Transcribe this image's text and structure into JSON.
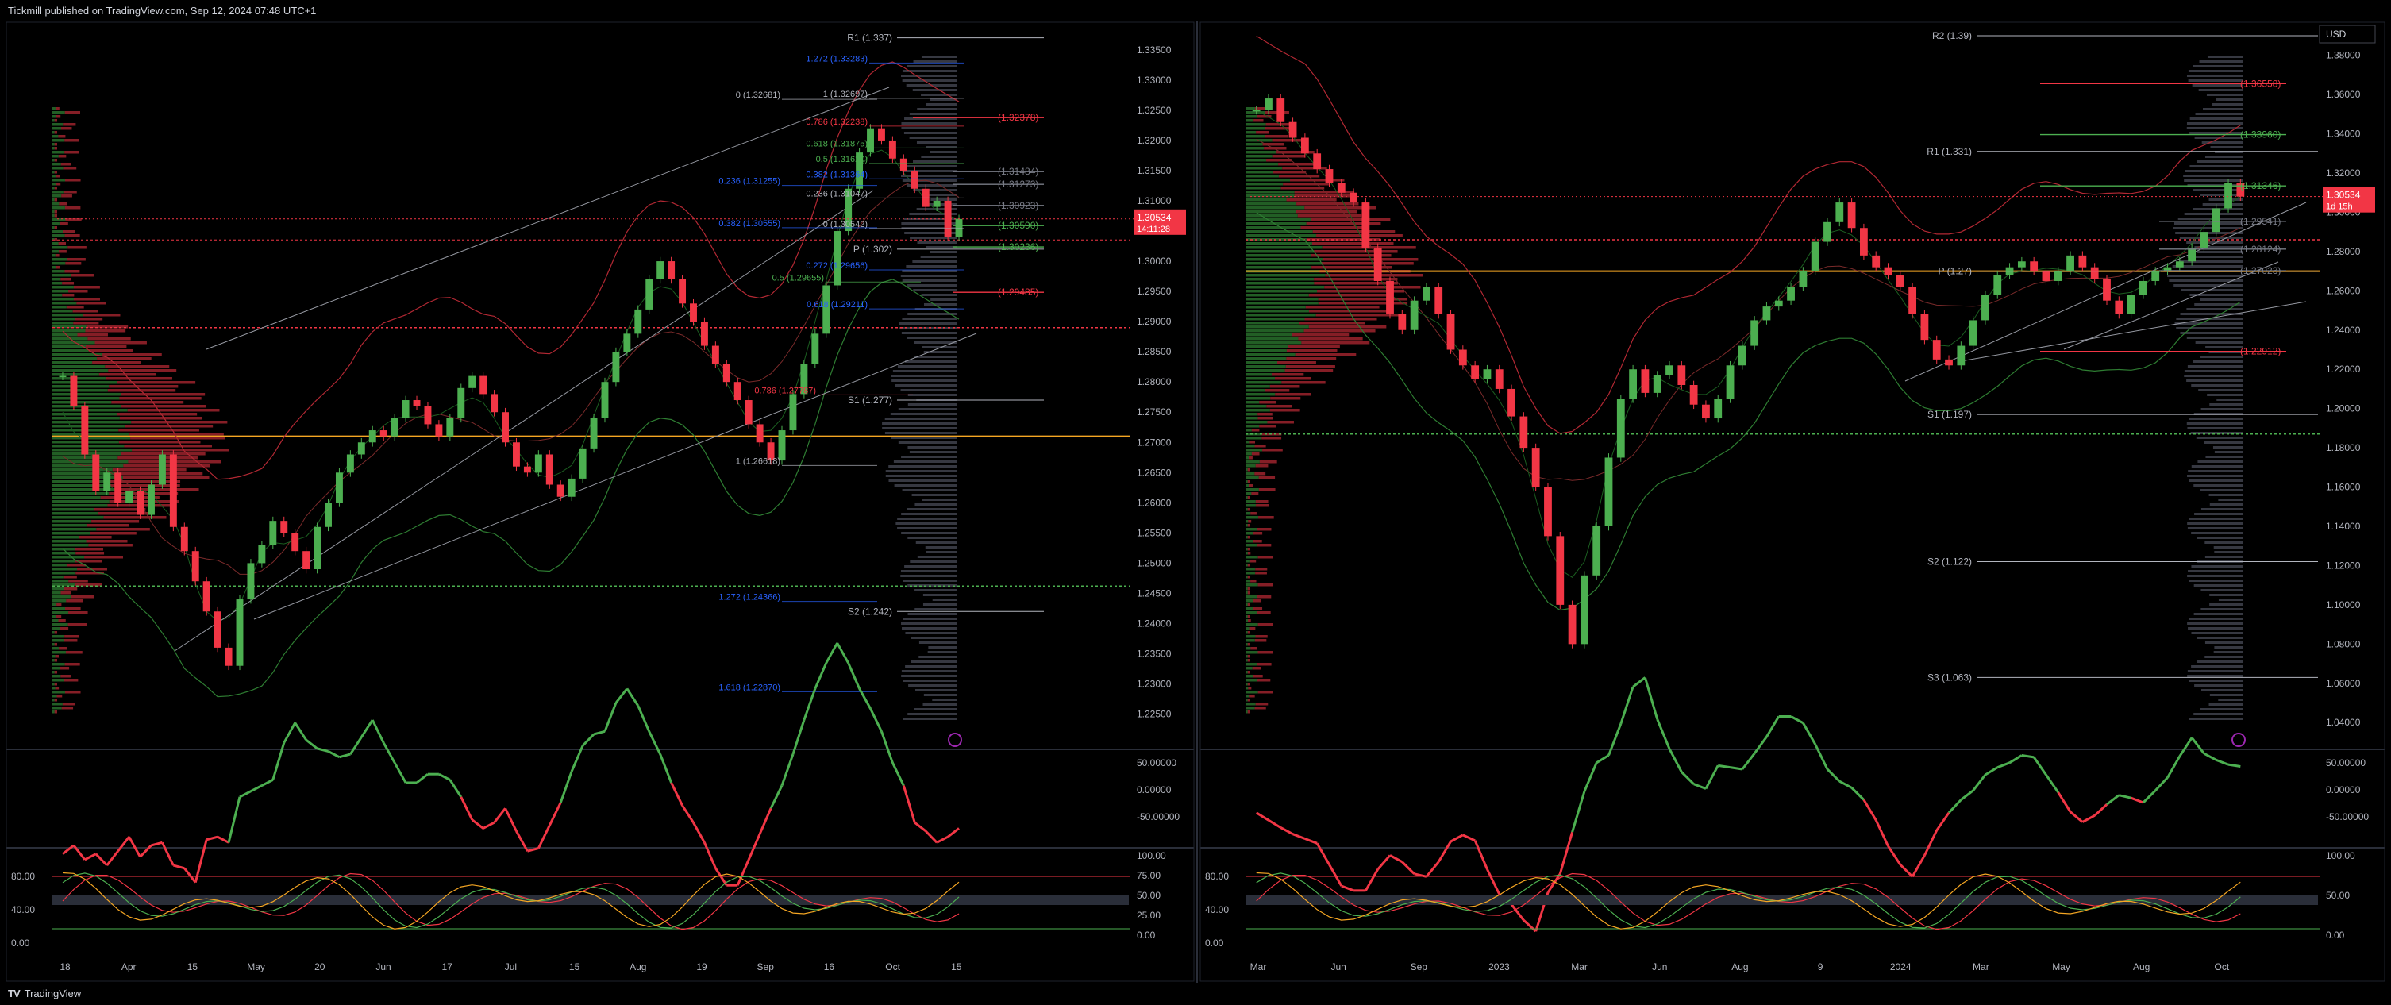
{
  "header": {
    "published": "Tickmill published on TradingView.com, Sep 12, 2024 07:48 UTC+1"
  },
  "footer": {
    "brand": "TradingView",
    "logo_icon": "tradingview-logo-icon"
  },
  "colors": {
    "bull": "#4caf50",
    "bear": "#f23645",
    "poc": "#f5a623",
    "pivot": "#b2b5be",
    "fib_blue": "#2962ff",
    "bg": "#000000"
  },
  "left": {
    "price_axis": [
      "1.33500",
      "1.33000",
      "1.32500",
      "1.32000",
      "1.31500",
      "1.31000",
      "1.30500",
      "1.30000",
      "1.29500",
      "1.29000",
      "1.28500",
      "1.28000",
      "1.27500",
      "1.27000",
      "1.26500",
      "1.26000",
      "1.25500",
      "1.25000",
      "1.24500",
      "1.24000",
      "1.23500",
      "1.23000",
      "1.22500"
    ],
    "price_badge": {
      "value": "1.30534",
      "timer": "14:11:28"
    },
    "time_axis": [
      "18",
      "Apr",
      "15",
      "May",
      "20",
      "Jun",
      "17",
      "Jul",
      "15",
      "Aug",
      "19",
      "Sep",
      "16",
      "Oct",
      "15"
    ],
    "fib_labels": [
      "1.272 (1.33283)",
      "1 (1.32697)",
      "0 (1.32681)",
      "0.786 (1.32238)",
      "0.618 (1.31875)",
      "0.5 (1.31620)",
      "0.382 (1.31364)",
      "0.236 (1.31255)",
      "0.236 (1.31047)",
      "0 (1.30542)",
      "0.382 (1.30555)",
      "0.272 (1.29656)",
      "0.5 (1.29655)",
      "0.618 (1.29211)",
      "0.786 (1.27787)",
      "1.272 (1.24366)",
      "1.618 (1.22870)",
      "1 (1.26618)"
    ],
    "level_labels": [
      "(1.32378)",
      "(1.31484)",
      "(1.31273)",
      "(1.30923)",
      "(1.30590)",
      "(1.30236)",
      "(1.29485)"
    ],
    "pivots": [
      "R1 (1.337)",
      "P (1.302)",
      "S1 (1.277)",
      "S2 (1.242)"
    ],
    "osc1_axis": [
      "50.00000",
      "0.00000",
      "-50.00000"
    ],
    "osc2_axis_left": [
      "80.00",
      "40.00",
      "0.00"
    ],
    "osc2_axis_right": [
      "100.00",
      "75.00",
      "50.00",
      "25.00",
      "0.00"
    ]
  },
  "right": {
    "currency": "USD",
    "price_axis": [
      "1.38000",
      "1.36000",
      "1.34000",
      "1.32000",
      "1.30000",
      "1.28000",
      "1.26000",
      "1.24000",
      "1.22000",
      "1.20000",
      "1.18000",
      "1.16000",
      "1.14000",
      "1.12000",
      "1.10000",
      "1.08000",
      "1.06000",
      "1.04000"
    ],
    "price_badge": {
      "value": "1.30534",
      "timer": "1d 15h"
    },
    "time_axis": [
      "Mar",
      "Jun",
      "Sep",
      "2023",
      "Mar",
      "Jun",
      "Aug",
      "9",
      "2024",
      "Mar",
      "May",
      "Aug",
      "Oct"
    ],
    "pivots": [
      "R2 (1.39)",
      "R1 (1.331)",
      "P (1.27)",
      "S1 (1.197)",
      "S2 (1.122)",
      "S3 (1.063)"
    ],
    "level_labels": [
      "(1.36558)",
      "(1.33960)",
      "(1.31346)",
      "(1.29541)",
      "(1.28124)",
      "(1.27023)",
      "(1.22912)"
    ],
    "osc1_axis": [
      "50.00000",
      "0.00000",
      "-50.00000"
    ],
    "osc2_axis_left": [
      "80.00",
      "40.00",
      "0.00"
    ],
    "osc2_axis_right": [
      "100.00",
      "50.00",
      "0.00"
    ]
  },
  "chart_data": [
    {
      "type": "line",
      "name": "left",
      "ylim": [
        1.221,
        1.338
      ],
      "close": [
        1.281,
        1.276,
        1.268,
        1.262,
        1.265,
        1.26,
        1.262,
        1.258,
        1.263,
        1.268,
        1.256,
        1.252,
        1.247,
        1.242,
        1.236,
        1.233,
        1.244,
        1.25,
        1.253,
        1.257,
        1.255,
        1.252,
        1.249,
        1.256,
        1.26,
        1.265,
        1.268,
        1.27,
        1.272,
        1.271,
        1.274,
        1.277,
        1.276,
        1.273,
        1.271,
        1.274,
        1.279,
        1.281,
        1.278,
        1.275,
        1.27,
        1.266,
        1.265,
        1.268,
        1.263,
        1.261,
        1.264,
        1.269,
        1.274,
        1.28,
        1.285,
        1.288,
        1.292,
        1.297,
        1.3,
        1.297,
        1.293,
        1.29,
        1.286,
        1.283,
        1.28,
        1.277,
        1.273,
        1.27,
        1.267,
        1.272,
        1.278,
        1.283,
        1.288,
        1.296,
        1.305,
        1.312,
        1.318,
        1.322,
        1.32,
        1.317,
        1.315,
        1.312,
        1.309,
        1.31,
        1.304,
        1.307
      ]
    },
    {
      "type": "line",
      "name": "right",
      "ylim": [
        1.032,
        1.392
      ],
      "close": [
        1.352,
        1.358,
        1.346,
        1.338,
        1.33,
        1.322,
        1.315,
        1.31,
        1.305,
        1.282,
        1.265,
        1.248,
        1.24,
        1.255,
        1.262,
        1.248,
        1.23,
        1.222,
        1.215,
        1.22,
        1.21,
        1.196,
        1.18,
        1.16,
        1.135,
        1.1,
        1.08,
        1.115,
        1.14,
        1.175,
        1.205,
        1.22,
        1.208,
        1.217,
        1.222,
        1.212,
        1.202,
        1.195,
        1.205,
        1.222,
        1.232,
        1.245,
        1.252,
        1.255,
        1.262,
        1.27,
        1.285,
        1.295,
        1.305,
        1.292,
        1.278,
        1.272,
        1.268,
        1.262,
        1.248,
        1.235,
        1.225,
        1.222,
        1.232,
        1.245,
        1.258,
        1.268,
        1.272,
        1.275,
        1.27,
        1.265,
        1.27,
        1.278,
        1.272,
        1.266,
        1.255,
        1.248,
        1.258,
        1.265,
        1.27,
        1.272,
        1.275,
        1.282,
        1.29,
        1.302,
        1.315,
        1.308
      ]
    }
  ]
}
